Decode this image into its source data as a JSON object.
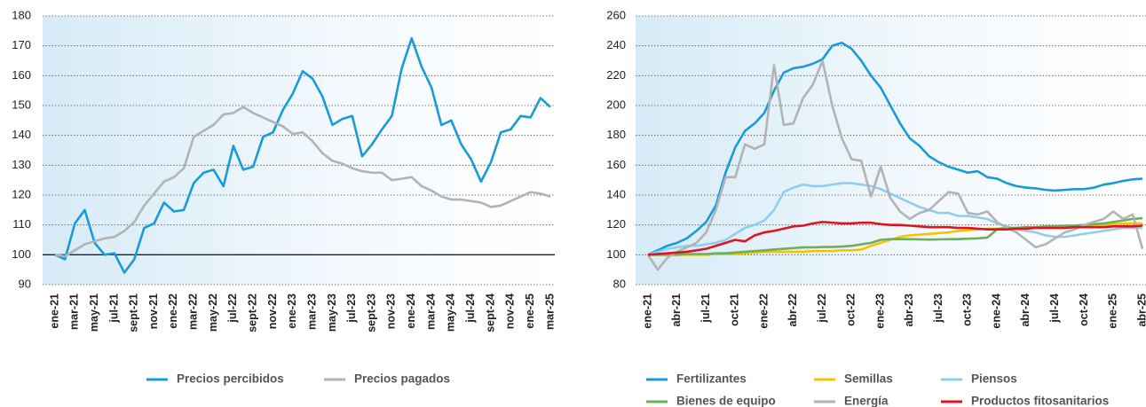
{
  "chart_data": [
    {
      "type": "line",
      "categories": [
        "ene-21",
        null,
        "mar-21",
        null,
        "may-21",
        null,
        "jul-21",
        null,
        "sept-21",
        null,
        "nov-21",
        null,
        "ene-22",
        null,
        "mar-22",
        null,
        "may-22",
        null,
        "jul-22",
        null,
        "sept-22",
        null,
        "nov-22",
        null,
        "ene-23",
        null,
        "mar-23",
        null,
        "may-23",
        null,
        "jul-23",
        null,
        "sept-23",
        null,
        "nov-23",
        null,
        "ene-24",
        null,
        "mar-24",
        null,
        "may-24",
        null,
        "jul-24",
        null,
        "sept-24",
        null,
        "nov-24",
        null,
        "ene-25",
        null,
        "mar-25"
      ],
      "series": [
        {
          "name": "Precios percibidos",
          "color": "#1a9bd7",
          "values": [
            100,
            98.5,
            110.5,
            115,
            104,
            100,
            100.5,
            94,
            98.5,
            109,
            110.5,
            117.5,
            114.5,
            115,
            124,
            127.5,
            128.5,
            123,
            136.5,
            128.5,
            129.5,
            139.5,
            141,
            148.5,
            154,
            161.5,
            159,
            153,
            143.5,
            145.5,
            146.5,
            133,
            137,
            142,
            146.5,
            162.5,
            172.5,
            163,
            156,
            143.5,
            145,
            137,
            132,
            124.5,
            131,
            141,
            142,
            146.5,
            146,
            152.5,
            149.5
          ]
        },
        {
          "name": "Precios pagados",
          "color": "#b3b3b3",
          "values": [
            100,
            99.5,
            101.5,
            103.5,
            104.5,
            105.5,
            106,
            108,
            111,
            116.5,
            120.5,
            124.5,
            126,
            129,
            139.5,
            141.5,
            143.5,
            147,
            147.5,
            149.5,
            147.5,
            146,
            144.5,
            143,
            140.5,
            141,
            138,
            134,
            131.5,
            130.5,
            129,
            128,
            127.5,
            127.5,
            125,
            125.5,
            126,
            123,
            121.5,
            119.5,
            118.5,
            118.5,
            118,
            117.5,
            116,
            116.5,
            118,
            119.5,
            121,
            120.5,
            119.5
          ]
        }
      ],
      "ylim": [
        90,
        180
      ],
      "yticks": [
        90,
        100,
        110,
        120,
        130,
        140,
        150,
        160,
        170,
        180
      ],
      "grid": true,
      "baseline": 100
    },
    {
      "type": "line",
      "categories": [
        "ene-21",
        null,
        null,
        "abr-21",
        null,
        null,
        "jul-21",
        null,
        null,
        "oct-21",
        null,
        null,
        "ene-22",
        null,
        null,
        "abr-22",
        null,
        null,
        "jul-22",
        null,
        null,
        "oct-22",
        null,
        null,
        "ene-23",
        null,
        null,
        "abr-23",
        null,
        null,
        "jul-23",
        null,
        null,
        "oct-23",
        null,
        null,
        "ene-24",
        null,
        null,
        "abr-24",
        null,
        null,
        "jul-24",
        null,
        null,
        "oct-24",
        null,
        null,
        "ene-25",
        null,
        null,
        "abr-25"
      ],
      "series": [
        {
          "name": "Fertilizantes",
          "color": "#1a9bd7",
          "values": [
            100,
            103,
            106,
            108,
            111,
            116,
            122,
            133,
            155,
            172,
            183,
            188,
            195,
            210,
            222,
            225,
            226,
            228,
            231,
            240,
            242,
            238,
            230,
            220,
            212,
            200,
            188,
            178,
            173,
            166,
            162,
            159,
            157,
            155,
            156,
            152,
            151,
            148,
            146,
            145,
            144.5,
            143.5,
            143,
            143.5,
            144,
            144,
            145,
            147,
            148,
            149.5,
            150.5,
            151
          ]
        },
        {
          "name": "Semillas",
          "color": "#f5c400",
          "values": [
            100,
            100,
            100,
            100,
            100,
            100,
            100,
            100.5,
            100.5,
            100.5,
            101,
            101.5,
            102,
            102,
            102,
            102,
            102,
            102.5,
            102.5,
            102.5,
            103,
            103,
            103.5,
            106,
            108,
            110,
            112,
            113,
            113.5,
            114,
            114.5,
            115,
            116,
            116.5,
            117,
            117.5,
            117.5,
            118,
            118,
            118.5,
            118.5,
            119,
            119,
            119.5,
            119.5,
            120,
            120,
            120,
            120.5,
            121,
            121,
            121
          ]
        },
        {
          "name": "Piensos",
          "color": "#8fcfee",
          "values": [
            100,
            102,
            104,
            105,
            106,
            106,
            107,
            108,
            110,
            114,
            118,
            120,
            123,
            130,
            142,
            145,
            147,
            146,
            146,
            147,
            148,
            148,
            147,
            146,
            144,
            141,
            138,
            135,
            132,
            130,
            128,
            128,
            126,
            126,
            125,
            124,
            121,
            119,
            117,
            116,
            115,
            113,
            112,
            112,
            113,
            114,
            115,
            116,
            117,
            118,
            118,
            118
          ]
        },
        {
          "name": "Bienes de equipo",
          "color": "#6fae5a",
          "values": [
            100,
            100,
            100,
            100,
            100.5,
            100.5,
            100.5,
            101,
            101,
            101.5,
            102,
            102.5,
            103,
            103.5,
            104,
            104.5,
            105,
            105,
            105.2,
            105.3,
            105.5,
            106,
            107,
            108,
            110,
            110.5,
            110.5,
            110.5,
            110.3,
            110.2,
            110.3,
            110.5,
            110.5,
            110.8,
            111,
            111.5,
            117,
            118,
            118,
            118.5,
            118.5,
            119,
            119,
            119.5,
            119.5,
            120,
            120.5,
            121,
            122,
            123,
            124,
            124.5
          ]
        },
        {
          "name": "Energía",
          "color": "#b3b3b3",
          "values": [
            100,
            90,
            98,
            102,
            105,
            108,
            115,
            130,
            152,
            152,
            174,
            171,
            174,
            227,
            187,
            188,
            205,
            214,
            230,
            200,
            178,
            164,
            163,
            139,
            159,
            138,
            129,
            124,
            128,
            130,
            136,
            142,
            141,
            128,
            127,
            129,
            122,
            118,
            115,
            110,
            105,
            107,
            111,
            115,
            117,
            120,
            122,
            124,
            129,
            124,
            127,
            104
          ]
        },
        {
          "name": "Productos fitosanitarios",
          "color": "#e0141e",
          "values": [
            100,
            100.5,
            101,
            101.5,
            102,
            103,
            104,
            106,
            108,
            110,
            109,
            113,
            115,
            116,
            117.5,
            119,
            119.5,
            121,
            122,
            121.5,
            121,
            121,
            121.5,
            121.5,
            120.5,
            120,
            120,
            119.5,
            119,
            118.5,
            118.5,
            118.5,
            118,
            118,
            117.5,
            117,
            117,
            117,
            117.5,
            117.5,
            118,
            118,
            118,
            118,
            118.5,
            118.5,
            118.5,
            118.5,
            119,
            119,
            119,
            119.5
          ]
        }
      ],
      "ylim": [
        80,
        260
      ],
      "yticks": [
        80,
        100,
        120,
        140,
        160,
        180,
        200,
        220,
        240,
        260
      ],
      "grid": true
    }
  ]
}
